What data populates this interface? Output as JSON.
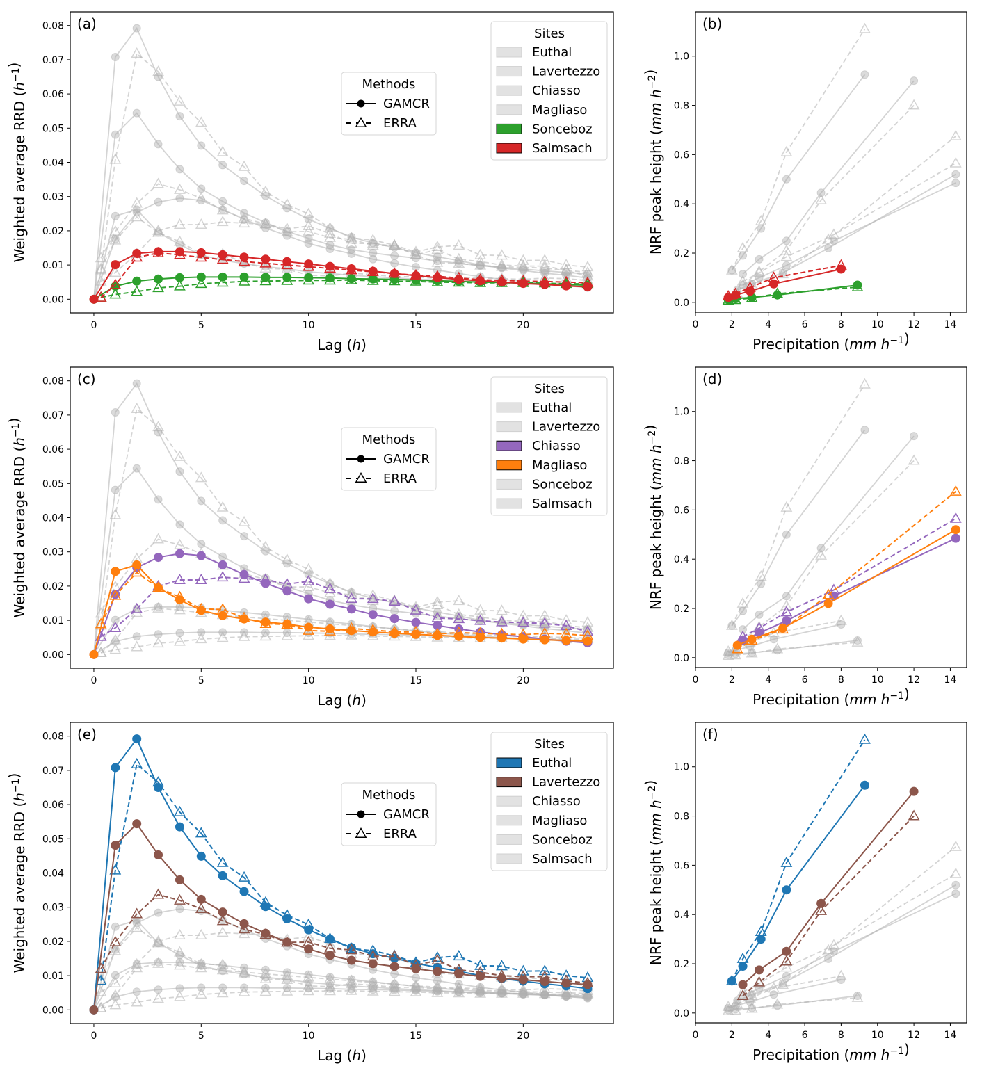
{
  "figure": {
    "sites": [
      "Euthal",
      "Lavertezzo",
      "Chiasso",
      "Magliaso",
      "Sonceboz",
      "Salmsach"
    ],
    "site_colors": {
      "Euthal": "#1f77b4",
      "Lavertezzo": "#8c564b",
      "Chiasso": "#9467bd",
      "Magliaso": "#ff7f0e",
      "Sonceboz": "#2ca02c",
      "Salmsach": "#d62728"
    },
    "inactive_color": "#b0b0b0",
    "legend_methods_title": "Methods",
    "legend_methods": [
      {
        "label": "GAMCR",
        "line": "solid",
        "marker": "circle"
      },
      {
        "label": "ERRA",
        "line": "dashed",
        "marker": "triangle-open"
      }
    ],
    "legend_sites_title": "Sites"
  },
  "chart_data": [
    {
      "panel": "(a)",
      "type": "line",
      "title": "",
      "xlabel": "Lag (h)",
      "ylabel": "Weighted average RRD (h^-1)",
      "xlim": [
        -1.1,
        24.2
      ],
      "ylim": [
        -0.004,
        0.084
      ],
      "xticks": [
        0,
        5,
        10,
        15,
        20
      ],
      "yticks": [
        "0.00",
        "0.01",
        "0.02",
        "0.03",
        "0.04",
        "0.05",
        "0.06",
        "0.07",
        "0.08"
      ],
      "highlighted_sites": [
        "Sonceboz",
        "Salmsach"
      ],
      "legend_placement": "top-right",
      "grid": false
    },
    {
      "panel": "(b)",
      "type": "line",
      "xlabel": "Precipitation (mm h^-1)",
      "ylabel": "NRF peak height (mm h^-2)",
      "xlim": [
        0,
        14.9
      ],
      "ylim": [
        -0.04,
        1.18
      ],
      "xticks": [
        0,
        2,
        4,
        6,
        8,
        10,
        12,
        14
      ],
      "yticks": [
        "0.0",
        "0.2",
        "0.4",
        "0.6",
        "0.8",
        "1.0"
      ],
      "highlighted_sites": [
        "Sonceboz",
        "Salmsach"
      ],
      "grid": false
    },
    {
      "panel": "(c)",
      "type": "line",
      "xlabel": "Lag (h)",
      "ylabel": "Weighted average RRD (h^-1)",
      "xlim": [
        -1.1,
        24.2
      ],
      "ylim": [
        -0.004,
        0.084
      ],
      "xticks": [
        0,
        5,
        10,
        15,
        20
      ],
      "yticks": [
        "0.00",
        "0.01",
        "0.02",
        "0.03",
        "0.04",
        "0.05",
        "0.06",
        "0.07",
        "0.08"
      ],
      "highlighted_sites": [
        "Chiasso",
        "Magliaso"
      ],
      "legend_placement": "top-right",
      "grid": false
    },
    {
      "panel": "(d)",
      "type": "line",
      "xlabel": "Precipitation (mm h^-1)",
      "ylabel": "NRF peak height (mm h^-2)",
      "xlim": [
        0,
        14.9
      ],
      "ylim": [
        -0.04,
        1.18
      ],
      "xticks": [
        0,
        2,
        4,
        6,
        8,
        10,
        12,
        14
      ],
      "yticks": [
        "0.0",
        "0.2",
        "0.4",
        "0.6",
        "0.8",
        "1.0"
      ],
      "highlighted_sites": [
        "Chiasso",
        "Magliaso"
      ],
      "grid": false
    },
    {
      "panel": "(e)",
      "type": "line",
      "xlabel": "Lag (h)",
      "ylabel": "Weighted average RRD (h^-1)",
      "xlim": [
        -1.1,
        24.2
      ],
      "ylim": [
        -0.004,
        0.084
      ],
      "xticks": [
        0,
        5,
        10,
        15,
        20
      ],
      "yticks": [
        "0.00",
        "0.01",
        "0.02",
        "0.03",
        "0.04",
        "0.05",
        "0.06",
        "0.07",
        "0.08"
      ],
      "highlighted_sites": [
        "Euthal",
        "Lavertezzo"
      ],
      "legend_placement": "top-right",
      "grid": false
    },
    {
      "panel": "(f)",
      "type": "line",
      "xlabel": "Precipitation (mm h^-1)",
      "ylabel": "NRF peak height (mm h^-2)",
      "xlim": [
        0,
        14.9
      ],
      "ylim": [
        -0.04,
        1.18
      ],
      "xticks": [
        0,
        2,
        4,
        6,
        8,
        10,
        12,
        14
      ],
      "yticks": [
        "0.0",
        "0.2",
        "0.4",
        "0.6",
        "0.8",
        "1.0"
      ],
      "highlighted_sites": [
        "Euthal",
        "Lavertezzo"
      ],
      "grid": false
    }
  ],
  "rrd_series": {
    "gamcr_x": [
      0,
      1,
      2,
      3,
      4,
      5,
      6,
      7,
      8,
      9,
      10,
      11,
      12,
      13,
      14,
      15,
      16,
      17,
      18,
      19,
      20,
      21,
      22,
      23
    ],
    "erra_x": [
      0.33,
      1,
      2,
      3,
      4,
      5,
      6,
      7,
      8,
      9,
      10,
      11,
      12,
      13,
      14,
      15,
      16,
      17,
      18,
      19,
      20,
      21,
      22,
      23
    ],
    "Euthal": {
      "GAMCR": [
        0,
        0.0708,
        0.0792,
        0.065,
        0.0535,
        0.0449,
        0.0392,
        0.0346,
        0.0302,
        0.0266,
        0.0234,
        0.0207,
        0.0182,
        0.0164,
        0.0151,
        0.0136,
        0.0124,
        0.0113,
        0.01,
        0.0091,
        0.0084,
        0.0076,
        0.007,
        0.0062
      ],
      "ERRA": [
        0.0085,
        0.0408,
        0.0718,
        0.0665,
        0.0578,
        0.0516,
        0.043,
        0.0387,
        0.0314,
        0.0277,
        0.0249,
        0.0208,
        0.0179,
        0.0173,
        0.0158,
        0.0138,
        0.0153,
        0.0157,
        0.0129,
        0.0128,
        0.0113,
        0.0114,
        0.01,
        0.0094
      ]
    },
    "Lavertezzo": {
      "GAMCR": [
        0,
        0.0481,
        0.0544,
        0.0453,
        0.038,
        0.0323,
        0.0286,
        0.0252,
        0.0224,
        0.0198,
        0.0178,
        0.0159,
        0.0145,
        0.0135,
        0.0127,
        0.012,
        0.0112,
        0.0105,
        0.0098,
        0.0093,
        0.0088,
        0.0083,
        0.0078,
        0.0074
      ],
      "ERRA": [
        0.012,
        0.0198,
        0.028,
        0.0337,
        0.032,
        0.0295,
        0.026,
        0.0236,
        0.022,
        0.0197,
        0.0198,
        0.018,
        0.0175,
        0.0157,
        0.0157,
        0.013,
        0.0145,
        0.0117,
        0.011,
        0.01,
        0.0097,
        0.0097,
        0.0085,
        0.0078
      ]
    },
    "Chiasso": {
      "GAMCR": [
        0,
        0.0176,
        0.0254,
        0.0284,
        0.0295,
        0.0289,
        0.0262,
        0.0234,
        0.0208,
        0.0186,
        0.0163,
        0.0147,
        0.0133,
        0.0117,
        0.0105,
        0.0094,
        0.0085,
        0.0075,
        0.0066,
        0.0058,
        0.0052,
        0.0045,
        0.0039,
        0.0034
      ],
      "ERRA": [
        0.0052,
        0.0078,
        0.0133,
        0.02,
        0.0218,
        0.0218,
        0.0226,
        0.0222,
        0.0219,
        0.0206,
        0.0214,
        0.0192,
        0.0163,
        0.0163,
        0.0155,
        0.0129,
        0.0107,
        0.0104,
        0.0099,
        0.0095,
        0.0093,
        0.0091,
        0.0084,
        0.0067
      ]
    },
    "Magliaso": {
      "GAMCR": [
        0,
        0.0243,
        0.0262,
        0.0195,
        0.016,
        0.0129,
        0.0114,
        0.0104,
        0.0095,
        0.0089,
        0.008,
        0.0075,
        0.007,
        0.0066,
        0.0062,
        0.0059,
        0.0056,
        0.0053,
        0.005,
        0.0048,
        0.0045,
        0.0043,
        0.0041,
        0.0039
      ],
      "ERRA": [
        0.0089,
        0.0172,
        0.024,
        0.0195,
        0.0168,
        0.0133,
        0.0132,
        0.0107,
        0.009,
        0.0088,
        0.007,
        0.0068,
        0.0076,
        0.0072,
        0.0066,
        0.0066,
        0.006,
        0.0064,
        0.0062,
        0.006,
        0.0058,
        0.0062,
        0.006,
        0.0055
      ]
    },
    "Sonceboz": {
      "GAMCR": [
        0,
        0.0038,
        0.0053,
        0.0059,
        0.0063,
        0.0065,
        0.0065,
        0.0065,
        0.0064,
        0.0064,
        0.0063,
        0.0062,
        0.006,
        0.0059,
        0.0058,
        0.0056,
        0.0054,
        0.0052,
        0.005,
        0.0049,
        0.0047,
        0.0045,
        0.0043,
        0.0041
      ],
      "ERRA": [
        0.0005,
        0.0014,
        0.0022,
        0.0033,
        0.0038,
        0.0045,
        0.0049,
        0.0052,
        0.0053,
        0.0054,
        0.0055,
        0.0055,
        0.0056,
        0.0054,
        0.0053,
        0.0052,
        0.005,
        0.0049,
        0.0048,
        0.0048,
        0.0048,
        0.0047,
        0.0045,
        0.0045
      ]
    },
    "Salmsach": {
      "GAMCR": [
        0,
        0.0101,
        0.0134,
        0.0139,
        0.0139,
        0.0136,
        0.013,
        0.0123,
        0.0117,
        0.011,
        0.0103,
        0.0096,
        0.0089,
        0.0082,
        0.0075,
        0.0069,
        0.0063,
        0.0058,
        0.0054,
        0.005,
        0.0046,
        0.0043,
        0.0039,
        0.0036
      ],
      "ERRA": [
        0.0005,
        0.0042,
        0.0122,
        0.0135,
        0.013,
        0.0122,
        0.0116,
        0.011,
        0.0105,
        0.01,
        0.0095,
        0.009,
        0.0085,
        0.008,
        0.0075,
        0.007,
        0.0067,
        0.0062,
        0.0057,
        0.0055,
        0.0053,
        0.0052,
        0.005,
        0.0048
      ]
    }
  },
  "nrf_series": {
    "Euthal": {
      "GAMCR": {
        "x": [
          2.0,
          2.6,
          3.6,
          5.0,
          9.3
        ],
        "y": [
          0.13,
          0.19,
          0.3,
          0.5,
          0.925
        ]
      },
      "ERRA": {
        "x": [
          2.0,
          2.6,
          3.6,
          5.0,
          9.3
        ],
        "y": [
          0.13,
          0.22,
          0.33,
          0.61,
          1.11
        ]
      }
    },
    "Lavertezzo": {
      "GAMCR": {
        "x": [
          2.6,
          3.5,
          5.0,
          6.9,
          12.0
        ],
        "y": [
          0.115,
          0.175,
          0.25,
          0.445,
          0.9
        ]
      },
      "ERRA": {
        "x": [
          2.6,
          3.5,
          5.0,
          6.9,
          12.0
        ],
        "y": [
          0.07,
          0.125,
          0.21,
          0.415,
          0.8
        ]
      }
    },
    "Chiasso": {
      "GAMCR": {
        "x": [
          2.6,
          3.5,
          5.0,
          7.6,
          14.3
        ],
        "y": [
          0.07,
          0.1,
          0.15,
          0.25,
          0.485
        ]
      },
      "ERRA": {
        "x": [
          2.6,
          3.5,
          5.0,
          7.6,
          14.3
        ],
        "y": [
          0.085,
          0.12,
          0.185,
          0.275,
          0.565
        ]
      }
    },
    "Magliaso": {
      "GAMCR": {
        "x": [
          2.3,
          3.1,
          4.8,
          7.3,
          14.3
        ],
        "y": [
          0.05,
          0.075,
          0.12,
          0.22,
          0.52
        ]
      },
      "ERRA": {
        "x": [
          2.3,
          3.1,
          4.8,
          7.3,
          14.3
        ],
        "y": [
          0.035,
          0.07,
          0.115,
          0.255,
          0.675
        ]
      }
    },
    "Sonceboz": {
      "GAMCR": {
        "x": [
          1.8,
          2.2,
          3.1,
          4.5,
          8.9
        ],
        "y": [
          0.012,
          0.015,
          0.02,
          0.03,
          0.07
        ]
      },
      "ERRA": {
        "x": [
          1.8,
          2.2,
          3.1,
          4.5,
          8.9
        ],
        "y": [
          0.008,
          0.01,
          0.018,
          0.035,
          0.062
        ]
      }
    },
    "Salmsach": {
      "GAMCR": {
        "x": [
          1.8,
          2.2,
          3.0,
          4.3,
          8.0
        ],
        "y": [
          0.02,
          0.03,
          0.045,
          0.075,
          0.135
        ]
      },
      "ERRA": {
        "x": [
          1.8,
          2.2,
          3.0,
          4.3,
          8.0
        ],
        "y": [
          0.025,
          0.035,
          0.06,
          0.1,
          0.15
        ]
      }
    }
  }
}
